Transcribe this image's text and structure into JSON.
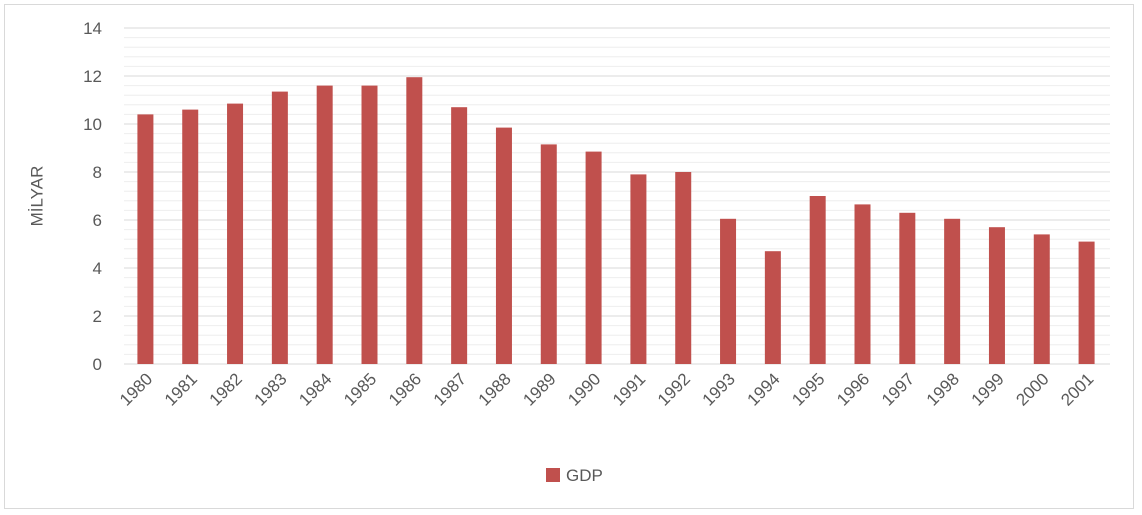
{
  "chart_data": {
    "type": "bar",
    "categories": [
      "1980",
      "1981",
      "1982",
      "1983",
      "1984",
      "1985",
      "1986",
      "1987",
      "1988",
      "1989",
      "1990",
      "1991",
      "1992",
      "1993",
      "1994",
      "1995",
      "1996",
      "1997",
      "1998",
      "1999",
      "2000",
      "2001"
    ],
    "series": [
      {
        "name": "GDP",
        "color": "#c0504d",
        "values": [
          10.4,
          10.6,
          10.85,
          11.35,
          11.6,
          11.6,
          11.95,
          10.7,
          9.85,
          9.15,
          8.85,
          7.9,
          8.0,
          6.05,
          4.7,
          7.0,
          6.65,
          6.3,
          6.05,
          5.7,
          5.4,
          5.1
        ]
      }
    ],
    "ylabel": "MİLYAR",
    "xlabel": "",
    "ylim": [
      0,
      14
    ],
    "yticks": [
      0,
      2,
      4,
      6,
      8,
      10,
      12,
      14
    ],
    "minor_gridlines": true,
    "legend": "bottom",
    "grid_color": "#d9d9d9"
  }
}
